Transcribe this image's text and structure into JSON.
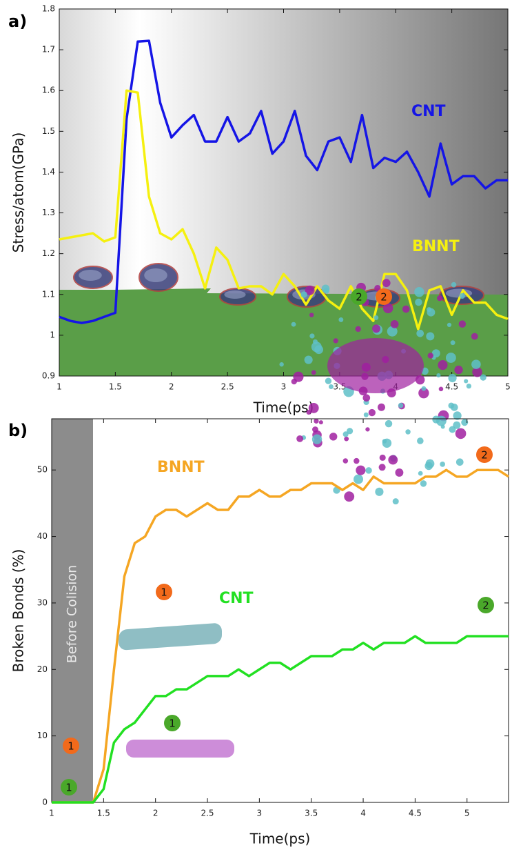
{
  "chart_data": [
    {
      "type": "line",
      "title": "a)",
      "xlabel": "Time(ps)",
      "ylabel": "Stress/atom(GPa)",
      "x": [
        1.0,
        1.1,
        1.2,
        1.3,
        1.4,
        1.5,
        1.6,
        1.7,
        1.8,
        1.9,
        2.0,
        2.1,
        2.2,
        2.3,
        2.4,
        2.5,
        2.6,
        2.7,
        2.8,
        2.9,
        3.0,
        3.1,
        3.2,
        3.3,
        3.4,
        3.5,
        3.6,
        3.7,
        3.8,
        3.9,
        4.0,
        4.1,
        4.2,
        4.3,
        4.4,
        4.5,
        4.6,
        4.7,
        4.8,
        4.9,
        5.0
      ],
      "series": [
        {
          "name": "CNT",
          "color": "#1515e6",
          "values": [
            1.045,
            1.035,
            1.03,
            1.035,
            1.045,
            1.055,
            1.53,
            1.72,
            1.722,
            1.57,
            1.485,
            1.515,
            1.54,
            1.475,
            1.475,
            1.535,
            1.475,
            1.495,
            1.55,
            1.445,
            1.475,
            1.55,
            1.44,
            1.405,
            1.475,
            1.485,
            1.425,
            1.54,
            1.41,
            1.435,
            1.425,
            1.45,
            1.4,
            1.34,
            1.47,
            1.37,
            1.39,
            1.39,
            1.36,
            1.38,
            1.38
          ]
        },
        {
          "name": "BNNT",
          "color": "#f5f010",
          "values": [
            1.235,
            1.24,
            1.245,
            1.25,
            1.23,
            1.24,
            1.6,
            1.595,
            1.34,
            1.25,
            1.235,
            1.26,
            1.2,
            1.115,
            1.215,
            1.185,
            1.115,
            1.12,
            1.12,
            1.1,
            1.15,
            1.12,
            1.075,
            1.12,
            1.085,
            1.065,
            1.12,
            1.065,
            1.035,
            1.15,
            1.15,
            1.11,
            1.015,
            1.11,
            1.12,
            1.05,
            1.11,
            1.08,
            1.08,
            1.05,
            1.04
          ]
        }
      ],
      "xlim": [
        1,
        5
      ],
      "ylim": [
        0.9,
        1.8
      ],
      "xticks": [
        1,
        1.5,
        2,
        2.5,
        3,
        3.5,
        4,
        4.5,
        5
      ],
      "yticks": [
        0.9,
        1,
        1.1,
        1.2,
        1.3,
        1.4,
        1.5,
        1.6,
        1.7,
        1.8
      ]
    },
    {
      "type": "line",
      "title": "b)",
      "xlabel": "Time(ps)",
      "ylabel": "Broken Bonds (%)",
      "annotation": "Before Colision",
      "badges": [
        {
          "text": "1",
          "color": "#f26a1b"
        },
        {
          "text": "1",
          "color": "#4aa82a"
        },
        {
          "text": "1",
          "color": "#f26a1b"
        },
        {
          "text": "1",
          "color": "#4aa82a"
        },
        {
          "text": "2",
          "color": "#4aa82a"
        },
        {
          "text": "2",
          "color": "#f26a1b"
        },
        {
          "text": "2",
          "color": "#f26a1b"
        },
        {
          "text": "2",
          "color": "#4aa82a"
        }
      ],
      "x": [
        1.0,
        1.1,
        1.2,
        1.3,
        1.4,
        1.5,
        1.6,
        1.7,
        1.8,
        1.9,
        2.0,
        2.1,
        2.2,
        2.3,
        2.4,
        2.5,
        2.6,
        2.7,
        2.8,
        2.9,
        3.0,
        3.1,
        3.2,
        3.3,
        3.4,
        3.5,
        3.6,
        3.7,
        3.8,
        3.9,
        4.0,
        4.1,
        4.2,
        4.3,
        4.4,
        4.5,
        4.6,
        4.7,
        4.8,
        4.9,
        5.0,
        5.1,
        5.2,
        5.3,
        5.4
      ],
      "series": [
        {
          "name": "BNNT",
          "color": "#f5a623",
          "values": [
            0,
            0,
            0,
            0,
            0,
            5,
            20,
            34,
            39,
            40,
            43,
            44,
            44,
            43,
            44,
            45,
            44,
            44,
            46,
            46,
            47,
            46,
            46,
            47,
            47,
            48,
            48,
            48,
            47,
            48,
            47,
            49,
            48,
            48,
            48,
            48,
            49,
            49,
            50,
            49,
            49,
            50,
            50,
            50,
            49
          ]
        },
        {
          "name": "CNT",
          "color": "#22e022",
          "values": [
            0,
            0,
            0,
            0,
            0,
            2,
            9,
            11,
            12,
            14,
            16,
            16,
            17,
            17,
            18,
            19,
            19,
            19,
            20,
            19,
            20,
            21,
            21,
            20,
            21,
            22,
            22,
            22,
            23,
            23,
            24,
            23,
            24,
            24,
            24,
            25,
            24,
            24,
            24,
            24,
            25,
            25,
            25,
            25,
            25
          ]
        }
      ],
      "xlim": [
        1,
        5.4
      ],
      "ylim": [
        0,
        57.7
      ],
      "xticks": [
        1,
        1.5,
        2,
        2.5,
        3,
        3.5,
        4,
        4.5,
        5
      ],
      "yticks": [
        0,
        10,
        20,
        30,
        40,
        50
      ]
    }
  ]
}
